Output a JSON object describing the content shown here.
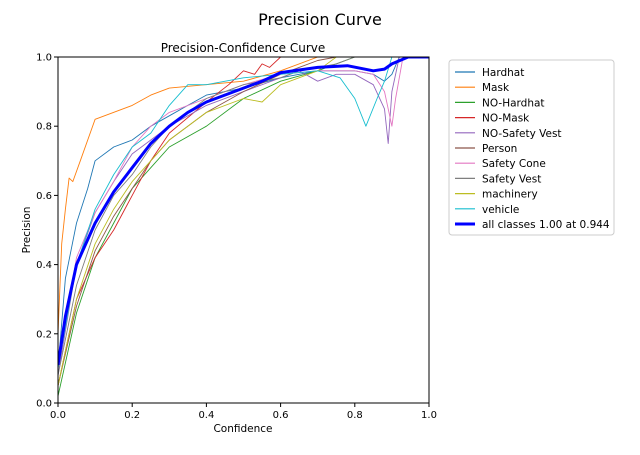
{
  "page_title": "Precision Curve",
  "chart_data": {
    "type": "line",
    "title": "Precision-Confidence Curve",
    "xlabel": "Confidence",
    "ylabel": "Precision",
    "xlim": [
      0,
      1
    ],
    "ylim": [
      0,
      1
    ],
    "xticks": [
      "0.0",
      "0.2",
      "0.4",
      "0.6",
      "0.8",
      "1.0"
    ],
    "yticks": [
      "0.0",
      "0.2",
      "0.4",
      "0.6",
      "0.8",
      "1.0"
    ],
    "grid": false,
    "legend_position": "outside-right",
    "series": [
      {
        "name": "Hardhat",
        "color": "#1f77b4",
        "x": [
          0,
          0.02,
          0.05,
          0.08,
          0.1,
          0.15,
          0.2,
          0.25,
          0.3,
          0.35,
          0.4,
          0.5,
          0.6,
          0.7,
          0.8,
          0.85,
          0.88,
          0.9,
          0.92,
          1.0
        ],
        "y": [
          0.1,
          0.36,
          0.52,
          0.62,
          0.7,
          0.74,
          0.76,
          0.8,
          0.83,
          0.86,
          0.89,
          0.91,
          0.94,
          0.96,
          0.96,
          0.95,
          0.93,
          0.95,
          1.0,
          1.0
        ]
      },
      {
        "name": "Mask",
        "color": "#ff7f0e",
        "x": [
          0,
          0.01,
          0.02,
          0.03,
          0.04,
          0.06,
          0.1,
          0.2,
          0.25,
          0.3,
          0.5,
          0.6,
          0.7,
          1.0
        ],
        "y": [
          0.2,
          0.46,
          0.56,
          0.65,
          0.64,
          0.7,
          0.82,
          0.86,
          0.89,
          0.91,
          0.93,
          0.96,
          1.0,
          1.0
        ]
      },
      {
        "name": "NO-Hardhat",
        "color": "#2ca02c",
        "x": [
          0,
          0.05,
          0.1,
          0.15,
          0.2,
          0.25,
          0.3,
          0.4,
          0.5,
          0.6,
          0.7,
          0.8,
          1.0
        ],
        "y": [
          0.02,
          0.26,
          0.42,
          0.52,
          0.62,
          0.68,
          0.74,
          0.8,
          0.88,
          0.93,
          0.96,
          1.0,
          1.0
        ]
      },
      {
        "name": "NO-Mask",
        "color": "#d62728",
        "x": [
          0,
          0.05,
          0.1,
          0.15,
          0.2,
          0.25,
          0.3,
          0.4,
          0.46,
          0.5,
          0.53,
          0.55,
          0.57,
          0.6,
          1.0
        ],
        "y": [
          0.05,
          0.3,
          0.42,
          0.5,
          0.6,
          0.7,
          0.78,
          0.87,
          0.92,
          0.96,
          0.95,
          0.98,
          0.97,
          1.0,
          1.0
        ]
      },
      {
        "name": "NO-Safety Vest",
        "color": "#9467bd",
        "x": [
          0,
          0.05,
          0.1,
          0.15,
          0.2,
          0.25,
          0.3,
          0.4,
          0.5,
          0.6,
          0.65,
          0.7,
          0.75,
          0.8,
          0.85,
          0.88,
          0.89,
          0.9,
          0.92,
          1.0
        ],
        "y": [
          0.08,
          0.4,
          0.55,
          0.64,
          0.72,
          0.76,
          0.8,
          0.86,
          0.9,
          0.94,
          0.96,
          0.93,
          0.95,
          0.95,
          0.92,
          0.85,
          0.75,
          0.9,
          1.0,
          1.0
        ]
      },
      {
        "name": "Person",
        "color": "#8c564b",
        "x": [
          0,
          0.05,
          0.1,
          0.15,
          0.2,
          0.25,
          0.3,
          0.4,
          0.5,
          0.6,
          0.65,
          0.7,
          0.75,
          1.0
        ],
        "y": [
          0.05,
          0.28,
          0.44,
          0.54,
          0.62,
          0.7,
          0.76,
          0.84,
          0.9,
          0.95,
          0.97,
          0.99,
          1.0,
          1.0
        ]
      },
      {
        "name": "Safety Cone",
        "color": "#e377c2",
        "x": [
          0,
          0.05,
          0.1,
          0.15,
          0.2,
          0.25,
          0.3,
          0.4,
          0.5,
          0.6,
          0.7,
          0.8,
          0.85,
          0.88,
          0.9,
          0.91,
          0.93,
          1.0
        ],
        "y": [
          0.1,
          0.42,
          0.55,
          0.64,
          0.74,
          0.8,
          0.84,
          0.88,
          0.92,
          0.95,
          0.96,
          0.96,
          0.95,
          0.9,
          0.8,
          0.88,
          1.0,
          1.0
        ]
      },
      {
        "name": "Safety Vest",
        "color": "#7f7f7f",
        "x": [
          0,
          0.05,
          0.1,
          0.15,
          0.2,
          0.25,
          0.3,
          0.4,
          0.5,
          0.6,
          0.65,
          0.7,
          0.75,
          0.8,
          1.0
        ],
        "y": [
          0.08,
          0.34,
          0.5,
          0.6,
          0.66,
          0.74,
          0.8,
          0.88,
          0.92,
          0.94,
          0.96,
          0.97,
          0.98,
          1.0,
          1.0
        ]
      },
      {
        "name": "machinery",
        "color": "#bcbd22",
        "x": [
          0,
          0.05,
          0.1,
          0.15,
          0.2,
          0.25,
          0.3,
          0.4,
          0.5,
          0.55,
          0.6,
          0.7,
          0.75,
          1.0
        ],
        "y": [
          0.05,
          0.3,
          0.46,
          0.56,
          0.64,
          0.7,
          0.76,
          0.84,
          0.88,
          0.87,
          0.92,
          0.96,
          1.0,
          1.0
        ]
      },
      {
        "name": "vehicle",
        "color": "#17becf",
        "x": [
          0,
          0.05,
          0.1,
          0.15,
          0.2,
          0.25,
          0.3,
          0.35,
          0.4,
          0.5,
          0.6,
          0.7,
          0.76,
          0.8,
          0.83,
          0.86,
          0.88,
          0.9,
          1.0
        ],
        "y": [
          0.1,
          0.4,
          0.56,
          0.66,
          0.74,
          0.78,
          0.86,
          0.92,
          0.92,
          0.94,
          0.95,
          0.96,
          0.94,
          0.88,
          0.8,
          0.88,
          0.93,
          1.0,
          1.0
        ]
      },
      {
        "name": "all classes 1.00 at 0.944",
        "color": "#0000ff",
        "bold": true,
        "x": [
          0,
          0.02,
          0.05,
          0.1,
          0.15,
          0.2,
          0.25,
          0.3,
          0.35,
          0.4,
          0.5,
          0.55,
          0.6,
          0.7,
          0.78,
          0.85,
          0.88,
          0.9,
          0.944,
          1.0
        ],
        "y": [
          0.11,
          0.25,
          0.4,
          0.52,
          0.61,
          0.68,
          0.75,
          0.8,
          0.84,
          0.87,
          0.91,
          0.93,
          0.955,
          0.97,
          0.975,
          0.96,
          0.965,
          0.98,
          1.0,
          1.0
        ]
      }
    ]
  }
}
